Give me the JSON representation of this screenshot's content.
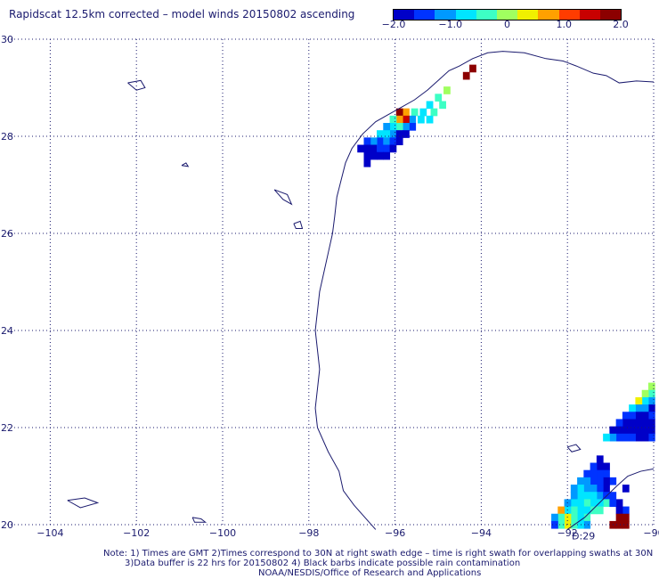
{
  "header": {
    "title": "Rapidscat 12.5km corrected – model winds 20150802 ascending"
  },
  "colorbar": {
    "tick_labels": [
      "−2.0",
      "−1.0",
      "0",
      "1.0",
      "2.0"
    ],
    "tick_values": [
      -2.0,
      -1.0,
      0,
      1.0,
      2.0
    ],
    "range": [
      -2.0,
      2.0
    ],
    "colors": [
      "#0000c8",
      "#0033ff",
      "#0099ff",
      "#00e5ff",
      "#3dffc4",
      "#a0ff5f",
      "#f0f000",
      "#ffa000",
      "#ff3c00",
      "#c80000",
      "#8c0000"
    ]
  },
  "map": {
    "lon_range": [
      -105,
      -90
    ],
    "lat_range": [
      20,
      30
    ],
    "lon_ticks": [
      -104,
      -102,
      -100,
      -98,
      -96,
      -94,
      -92,
      -90
    ],
    "lat_ticks": [
      20,
      22,
      24,
      26,
      28,
      30
    ],
    "grid": true,
    "coastline_color": "#1a1a6e",
    "swath_time_label": "D:29",
    "swath_time_color": "#d40000"
  },
  "notes": {
    "line1": "Note: 1) Times are GMT 2)Times correspond to 30N at right swath edge – time is right swath for overlapping swaths at 30N",
    "line2": "3)Data buffer is 22 hrs for 20150802 4) Black barbs indicate possible rain contamination",
    "line3": "NOAA/NESDIS/Office of Research and Applications"
  },
  "wind_cells": [
    {
      "lon": -94.2,
      "lat": 29.4,
      "v": 2.0
    },
    {
      "lon": -94.35,
      "lat": 29.25,
      "v": 2.0
    },
    {
      "lon": -94.8,
      "lat": 28.95,
      "v": 0.0
    },
    {
      "lon": -95.0,
      "lat": 28.8,
      "v": -0.3
    },
    {
      "lon": -94.9,
      "lat": 28.65,
      "v": -0.2
    },
    {
      "lon": -95.2,
      "lat": 28.65,
      "v": -0.6
    },
    {
      "lon": -95.1,
      "lat": 28.5,
      "v": -0.4
    },
    {
      "lon": -95.35,
      "lat": 28.5,
      "v": -0.8
    },
    {
      "lon": -95.2,
      "lat": 28.35,
      "v": -0.6
    },
    {
      "lon": -95.55,
      "lat": 28.5,
      "v": -0.4
    },
    {
      "lon": -95.4,
      "lat": 28.35,
      "v": -0.9
    },
    {
      "lon": -95.75,
      "lat": 28.5,
      "v": 0.6
    },
    {
      "lon": -95.6,
      "lat": 28.35,
      "v": -1.2
    },
    {
      "lon": -95.9,
      "lat": 28.5,
      "v": 2.0
    },
    {
      "lon": -95.75,
      "lat": 28.35,
      "v": 1.4
    },
    {
      "lon": -95.9,
      "lat": 28.35,
      "v": 0.7
    },
    {
      "lon": -95.6,
      "lat": 28.2,
      "v": -1.5
    },
    {
      "lon": -95.75,
      "lat": 28.2,
      "v": -1.0
    },
    {
      "lon": -95.9,
      "lat": 28.2,
      "v": -0.4
    },
    {
      "lon": -96.05,
      "lat": 28.35,
      "v": -0.2
    },
    {
      "lon": -96.05,
      "lat": 28.2,
      "v": -0.7
    },
    {
      "lon": -96.2,
      "lat": 28.2,
      "v": -1.0
    },
    {
      "lon": -96.05,
      "lat": 28.05,
      "v": -1.1
    },
    {
      "lon": -95.9,
      "lat": 28.05,
      "v": -1.7
    },
    {
      "lon": -95.75,
      "lat": 28.05,
      "v": -2.0
    },
    {
      "lon": -96.2,
      "lat": 28.05,
      "v": -0.8
    },
    {
      "lon": -96.35,
      "lat": 28.05,
      "v": -0.9
    },
    {
      "lon": -96.35,
      "lat": 27.9,
      "v": -1.3
    },
    {
      "lon": -96.2,
      "lat": 27.9,
      "v": -1.2
    },
    {
      "lon": -96.05,
      "lat": 27.9,
      "v": -1.5
    },
    {
      "lon": -95.9,
      "lat": 27.9,
      "v": -1.8
    },
    {
      "lon": -96.5,
      "lat": 27.9,
      "v": -1.1
    },
    {
      "lon": -96.65,
      "lat": 27.9,
      "v": -1.4
    },
    {
      "lon": -96.5,
      "lat": 27.75,
      "v": -1.7
    },
    {
      "lon": -96.35,
      "lat": 27.75,
      "v": -1.4
    },
    {
      "lon": -96.2,
      "lat": 27.75,
      "v": -1.6
    },
    {
      "lon": -96.05,
      "lat": 27.75,
      "v": -1.9
    },
    {
      "lon": -96.65,
      "lat": 27.75,
      "v": -1.8
    },
    {
      "lon": -96.8,
      "lat": 27.75,
      "v": -1.9
    },
    {
      "lon": -96.65,
      "lat": 27.6,
      "v": -1.8
    },
    {
      "lon": -96.5,
      "lat": 27.6,
      "v": -2.0
    },
    {
      "lon": -96.35,
      "lat": 27.6,
      "v": -2.0
    },
    {
      "lon": -96.2,
      "lat": 27.6,
      "v": -1.9
    },
    {
      "lon": -96.65,
      "lat": 27.45,
      "v": -1.9
    },
    {
      "lon": -90.05,
      "lat": 22.85,
      "v": 0.0
    },
    {
      "lon": -90.05,
      "lat": 22.7,
      "v": -0.3
    },
    {
      "lon": -90.2,
      "lat": 22.7,
      "v": 0.1
    },
    {
      "lon": -90.05,
      "lat": 22.55,
      "v": -1.2
    },
    {
      "lon": -90.2,
      "lat": 22.55,
      "v": -0.8
    },
    {
      "lon": -90.35,
      "lat": 22.55,
      "v": 0.4
    },
    {
      "lon": -90.05,
      "lat": 22.4,
      "v": -1.7
    },
    {
      "lon": -90.2,
      "lat": 22.4,
      "v": -1.0
    },
    {
      "lon": -90.35,
      "lat": 22.4,
      "v": -1.2
    },
    {
      "lon": -90.5,
      "lat": 22.4,
      "v": -0.7
    },
    {
      "lon": -90.05,
      "lat": 22.25,
      "v": -1.6
    },
    {
      "lon": -90.2,
      "lat": 22.25,
      "v": -1.9
    },
    {
      "lon": -90.35,
      "lat": 22.25,
      "v": -2.0
    },
    {
      "lon": -90.5,
      "lat": 22.25,
      "v": -1.5
    },
    {
      "lon": -90.65,
      "lat": 22.25,
      "v": -1.3
    },
    {
      "lon": -90.05,
      "lat": 22.1,
      "v": -2.0
    },
    {
      "lon": -90.2,
      "lat": 22.1,
      "v": -2.0
    },
    {
      "lon": -90.35,
      "lat": 22.1,
      "v": -2.0
    },
    {
      "lon": -90.5,
      "lat": 22.1,
      "v": -2.0
    },
    {
      "lon": -90.65,
      "lat": 22.1,
      "v": -1.9
    },
    {
      "lon": -90.8,
      "lat": 22.1,
      "v": -1.6
    },
    {
      "lon": -90.05,
      "lat": 21.95,
      "v": -1.9
    },
    {
      "lon": -90.2,
      "lat": 21.95,
      "v": -2.0
    },
    {
      "lon": -90.35,
      "lat": 21.95,
      "v": -2.0
    },
    {
      "lon": -90.5,
      "lat": 21.95,
      "v": -2.0
    },
    {
      "lon": -90.65,
      "lat": 21.95,
      "v": -1.9
    },
    {
      "lon": -90.8,
      "lat": 21.95,
      "v": -1.9
    },
    {
      "lon": -90.95,
      "lat": 21.95,
      "v": -1.7
    },
    {
      "lon": -90.05,
      "lat": 21.8,
      "v": -1.5
    },
    {
      "lon": -90.2,
      "lat": 21.8,
      "v": -1.9
    },
    {
      "lon": -90.35,
      "lat": 21.8,
      "v": -1.9
    },
    {
      "lon": -90.5,
      "lat": 21.8,
      "v": -1.6
    },
    {
      "lon": -90.65,
      "lat": 21.8,
      "v": -1.5
    },
    {
      "lon": -90.8,
      "lat": 21.8,
      "v": -1.3
    },
    {
      "lon": -90.95,
      "lat": 21.8,
      "v": -1.1
    },
    {
      "lon": -91.1,
      "lat": 21.8,
      "v": -0.9
    },
    {
      "lon": -91.25,
      "lat": 21.35,
      "v": -2.0
    },
    {
      "lon": -91.1,
      "lat": 21.2,
      "v": -1.8
    },
    {
      "lon": -91.25,
      "lat": 21.2,
      "v": -1.7
    },
    {
      "lon": -91.4,
      "lat": 21.2,
      "v": -1.6
    },
    {
      "lon": -91.1,
      "lat": 21.05,
      "v": -1.6
    },
    {
      "lon": -91.25,
      "lat": 21.05,
      "v": -1.4
    },
    {
      "lon": -91.4,
      "lat": 21.05,
      "v": -1.5
    },
    {
      "lon": -91.55,
      "lat": 21.05,
      "v": -1.4
    },
    {
      "lon": -90.95,
      "lat": 20.9,
      "v": -1.3
    },
    {
      "lon": -91.1,
      "lat": 20.9,
      "v": -1.7
    },
    {
      "lon": -91.25,
      "lat": 20.9,
      "v": -1.5
    },
    {
      "lon": -91.4,
      "lat": 20.9,
      "v": -1.3
    },
    {
      "lon": -91.55,
      "lat": 20.9,
      "v": -1.2
    },
    {
      "lon": -91.7,
      "lat": 20.9,
      "v": -1.0
    },
    {
      "lon": -91.1,
      "lat": 20.75,
      "v": -1.9
    },
    {
      "lon": -91.25,
      "lat": 20.75,
      "v": -1.6
    },
    {
      "lon": -91.4,
      "lat": 20.75,
      "v": -1.2
    },
    {
      "lon": -91.55,
      "lat": 20.75,
      "v": -1.0
    },
    {
      "lon": -91.7,
      "lat": 20.75,
      "v": -0.9
    },
    {
      "lon": -91.85,
      "lat": 20.75,
      "v": -1.1
    },
    {
      "lon": -90.65,
      "lat": 20.75,
      "v": -2.0
    },
    {
      "lon": -91.25,
      "lat": 20.6,
      "v": -1.1
    },
    {
      "lon": -91.4,
      "lat": 20.6,
      "v": -0.8
    },
    {
      "lon": -91.55,
      "lat": 20.6,
      "v": -0.7
    },
    {
      "lon": -91.7,
      "lat": 20.6,
      "v": -0.9
    },
    {
      "lon": -91.85,
      "lat": 20.6,
      "v": -1.0
    },
    {
      "lon": -90.95,
      "lat": 20.6,
      "v": -1.5
    },
    {
      "lon": -91.1,
      "lat": 20.6,
      "v": -1.3
    },
    {
      "lon": -91.1,
      "lat": 20.45,
      "v": -0.4
    },
    {
      "lon": -91.25,
      "lat": 20.45,
      "v": -0.6
    },
    {
      "lon": -91.4,
      "lat": 20.45,
      "v": -0.7
    },
    {
      "lon": -91.55,
      "lat": 20.45,
      "v": -0.5
    },
    {
      "lon": -91.7,
      "lat": 20.45,
      "v": -0.6
    },
    {
      "lon": -91.85,
      "lat": 20.45,
      "v": -0.8
    },
    {
      "lon": -92.0,
      "lat": 20.45,
      "v": -1.2
    },
    {
      "lon": -90.8,
      "lat": 20.45,
      "v": -1.7
    },
    {
      "lon": -90.95,
      "lat": 20.45,
      "v": -1.3
    },
    {
      "lon": -90.65,
      "lat": 20.3,
      "v": -1.5
    },
    {
      "lon": -90.8,
      "lat": 20.3,
      "v": -1.9
    },
    {
      "lon": -91.25,
      "lat": 20.3,
      "v": -0.3
    },
    {
      "lon": -91.4,
      "lat": 20.3,
      "v": -0.4
    },
    {
      "lon": -91.55,
      "lat": 20.3,
      "v": -0.6
    },
    {
      "lon": -91.7,
      "lat": 20.3,
      "v": -0.8
    },
    {
      "lon": -91.85,
      "lat": 20.3,
      "v": -0.5
    },
    {
      "lon": -92.0,
      "lat": 20.3,
      "v": -0.7
    },
    {
      "lon": -92.15,
      "lat": 20.3,
      "v": 0.9
    },
    {
      "lon": -90.65,
      "lat": 20.15,
      "v": 2.0
    },
    {
      "lon": -90.8,
      "lat": 20.15,
      "v": 2.0
    },
    {
      "lon": -91.55,
      "lat": 20.15,
      "v": -0.4
    },
    {
      "lon": -91.7,
      "lat": 20.15,
      "v": -0.6
    },
    {
      "lon": -91.85,
      "lat": 20.15,
      "v": -0.3
    },
    {
      "lon": -92.0,
      "lat": 20.15,
      "v": 0.4
    },
    {
      "lon": -92.15,
      "lat": 20.15,
      "v": -0.4
    },
    {
      "lon": -92.3,
      "lat": 20.15,
      "v": -1.0
    },
    {
      "lon": -90.65,
      "lat": 20.0,
      "v": 2.0
    },
    {
      "lon": -90.8,
      "lat": 20.0,
      "v": 2.0
    },
    {
      "lon": -90.95,
      "lat": 20.0,
      "v": 2.0
    },
    {
      "lon": -91.55,
      "lat": 20.0,
      "v": -1.2
    },
    {
      "lon": -91.7,
      "lat": 20.0,
      "v": -0.7
    },
    {
      "lon": -91.85,
      "lat": 20.0,
      "v": -0.2
    },
    {
      "lon": -92.0,
      "lat": 20.0,
      "v": 0.3
    },
    {
      "lon": -92.15,
      "lat": 20.0,
      "v": -0.5
    },
    {
      "lon": -92.3,
      "lat": 20.0,
      "v": -1.3
    }
  ]
}
